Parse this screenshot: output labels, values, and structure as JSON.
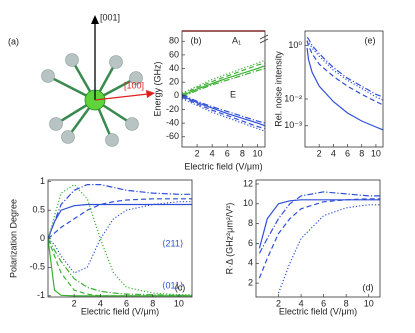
{
  "diagram": {
    "panel_label": "(a)",
    "axis_z": "[001]",
    "axis_x": "[100]"
  },
  "chart_data": [
    {
      "type": "line",
      "panel_label": "(b)",
      "ylabel": "Energy (GHz)",
      "xlabel": "Electric field (V/μm)",
      "annotations": [
        "A₁",
        "E"
      ],
      "xlim": [
        0,
        11
      ],
      "ylim": [
        -75,
        95
      ],
      "xticks": [
        2,
        4,
        6,
        8,
        10
      ],
      "yticks": [
        -60,
        -40,
        -20,
        0,
        20,
        40,
        60,
        80
      ],
      "x": [
        0,
        1,
        2,
        4,
        6,
        8,
        10,
        11
      ],
      "series": [
        {
          "color": "#3cb034",
          "dash": "solid",
          "values": [
            0,
            5,
            10,
            18,
            26,
            33,
            40,
            44
          ]
        },
        {
          "color": "#3cb034",
          "dash": "dashed",
          "values": [
            2,
            7,
            12,
            21,
            29,
            37,
            45,
            48
          ]
        },
        {
          "color": "#3cb034",
          "dash": "dotted",
          "values": [
            4,
            9,
            14,
            24,
            32,
            40,
            48,
            52
          ]
        },
        {
          "color": "#3cb034",
          "dash": "dashdot",
          "values": [
            -2,
            3,
            8,
            16,
            23,
            30,
            37,
            40
          ]
        },
        {
          "color": "#2f4fd8",
          "dash": "solid",
          "values": [
            0,
            -5,
            -10,
            -18,
            -26,
            -33,
            -40,
            -44
          ]
        },
        {
          "color": "#2f4fd8",
          "dash": "dashed",
          "values": [
            -2,
            -7,
            -12,
            -21,
            -29,
            -37,
            -45,
            -48
          ]
        },
        {
          "color": "#2f4fd8",
          "dash": "dotted",
          "values": [
            -4,
            -9,
            -14,
            -24,
            -32,
            -40,
            -48,
            -52
          ]
        },
        {
          "color": "#2f4fd8",
          "dash": "dashdot",
          "values": [
            2,
            -3,
            -8,
            -16,
            -23,
            -30,
            -37,
            -40
          ]
        }
      ]
    },
    {
      "type": "line",
      "panel_label": "(e)",
      "ylabel": "Rel. noise intensity",
      "yscale": "log",
      "xlim": [
        0,
        11
      ],
      "ylim": [
        0.00016,
        3.5
      ],
      "xticks": [
        2,
        4,
        6,
        8,
        10
      ],
      "yticks": [
        {
          "value": 1,
          "label": "10⁰"
        },
        {
          "value": 0.01,
          "label": "10⁻²"
        },
        {
          "value": 0.001,
          "label": "10⁻³"
        }
      ],
      "x": [
        0.3,
        0.5,
        1,
        2,
        4,
        6,
        8,
        10,
        11
      ],
      "series": [
        {
          "color": "#2f4fd8",
          "dash": "solid",
          "values": [
            0.8,
            0.3,
            0.1,
            0.03,
            0.008,
            0.003,
            0.0015,
            0.0009,
            0.0007
          ]
        },
        {
          "color": "#2f4fd8",
          "dash": "dashed",
          "values": [
            1.5,
            1.0,
            0.5,
            0.2,
            0.07,
            0.03,
            0.015,
            0.008,
            0.006
          ]
        },
        {
          "color": "#2f4fd8",
          "dash": "dashdot",
          "values": [
            2,
            1.8,
            1,
            0.5,
            0.15,
            0.06,
            0.03,
            0.015,
            0.012
          ]
        },
        {
          "color": "#2f4fd8",
          "dash": "dotted",
          "values": [
            1.5,
            1.3,
            0.8,
            0.4,
            0.12,
            0.05,
            0.025,
            0.012,
            0.009
          ]
        }
      ]
    },
    {
      "type": "line",
      "panel_label": "(c)",
      "ylabel": "Polarization Degree",
      "xlabel": "Electric field (V/μm)",
      "annotations": [
        "⟨211⟩",
        "⟨011⟩"
      ],
      "xlim": [
        0,
        11
      ],
      "ylim": [
        -1.02,
        1.03
      ],
      "xticks": [
        2,
        4,
        6,
        8,
        10
      ],
      "yticks": [
        -1,
        -0.5,
        0,
        0.5,
        1
      ],
      "x": [
        0,
        0.5,
        1,
        2,
        3,
        4,
        5,
        6,
        8,
        10,
        11
      ],
      "series": [
        {
          "color": "#2f4fd8",
          "dash": "solid",
          "values": [
            0,
            0.3,
            0.5,
            0.58,
            0.6,
            0.6,
            0.6,
            0.6,
            0.6,
            0.6,
            0.6
          ]
        },
        {
          "color": "#2f4fd8",
          "dash": "dashed",
          "values": [
            0,
            0.1,
            0.2,
            0.35,
            0.5,
            0.6,
            0.65,
            0.68,
            0.7,
            0.7,
            0.7
          ]
        },
        {
          "color": "#2f4fd8",
          "dash": "dashdot",
          "values": [
            0,
            0.3,
            0.6,
            0.85,
            0.95,
            0.95,
            0.9,
            0.85,
            0.8,
            0.78,
            0.78
          ]
        },
        {
          "color": "#2f4fd8",
          "dash": "dotted",
          "values": [
            0,
            -0.1,
            -0.3,
            -0.6,
            -0.5,
            0,
            0.35,
            0.5,
            0.6,
            0.65,
            0.65
          ]
        },
        {
          "color": "#3cb034",
          "dash": "solid",
          "values": [
            0,
            -0.9,
            -0.99,
            -1,
            -1,
            -1,
            -1,
            -1,
            -1,
            -1,
            -1
          ]
        },
        {
          "color": "#3cb034",
          "dash": "dashed",
          "values": [
            0,
            -0.3,
            -0.6,
            -0.9,
            -0.97,
            -1,
            -1,
            -1,
            -1,
            -1,
            -1
          ]
        },
        {
          "color": "#3cb034",
          "dash": "dotted",
          "values": [
            0,
            0.4,
            0.8,
            0.95,
            0.7,
            0,
            -0.6,
            -0.85,
            -0.95,
            -0.98,
            -0.98
          ]
        },
        {
          "color": "#3cb034",
          "dash": "dashdot",
          "values": [
            0,
            -0.2,
            -0.4,
            -0.7,
            -0.85,
            -0.92,
            -0.95,
            -0.97,
            -0.98,
            -0.99,
            -0.99
          ]
        }
      ]
    },
    {
      "type": "line",
      "panel_label": "(d)",
      "ylabel": "R·Δ (GHz²μm²/V²)",
      "xlabel": "Electric field (V/μm)",
      "xlim": [
        0,
        11
      ],
      "ylim": [
        0.6,
        12.4
      ],
      "xticks": [
        2,
        4,
        6,
        8,
        10
      ],
      "yticks": [
        2,
        4,
        6,
        8,
        10,
        12
      ],
      "x": [
        0.3,
        1,
        2,
        3,
        4,
        6,
        8,
        10,
        11
      ],
      "series": [
        {
          "color": "#2f4fd8",
          "dash": "solid",
          "values": [
            5.5,
            8.5,
            10,
            10.3,
            10.4,
            10.4,
            10.4,
            10.4,
            10.4
          ]
        },
        {
          "color": "#2f4fd8",
          "dash": "dashed",
          "values": [
            2.5,
            4.5,
            7,
            8.5,
            9.5,
            10.2,
            10.4,
            10.5,
            10.5
          ]
        },
        {
          "color": "#2f4fd8",
          "dash": "dashdot",
          "values": [
            5,
            6.5,
            8.5,
            10,
            10.8,
            11.2,
            11,
            10.8,
            10.8
          ]
        },
        {
          "color": "#2f4fd8",
          "dash": "dotted",
          "values": [
            null,
            null,
            1,
            4,
            6.5,
            8.8,
            9.6,
            9.9,
            9.9
          ]
        }
      ]
    }
  ]
}
